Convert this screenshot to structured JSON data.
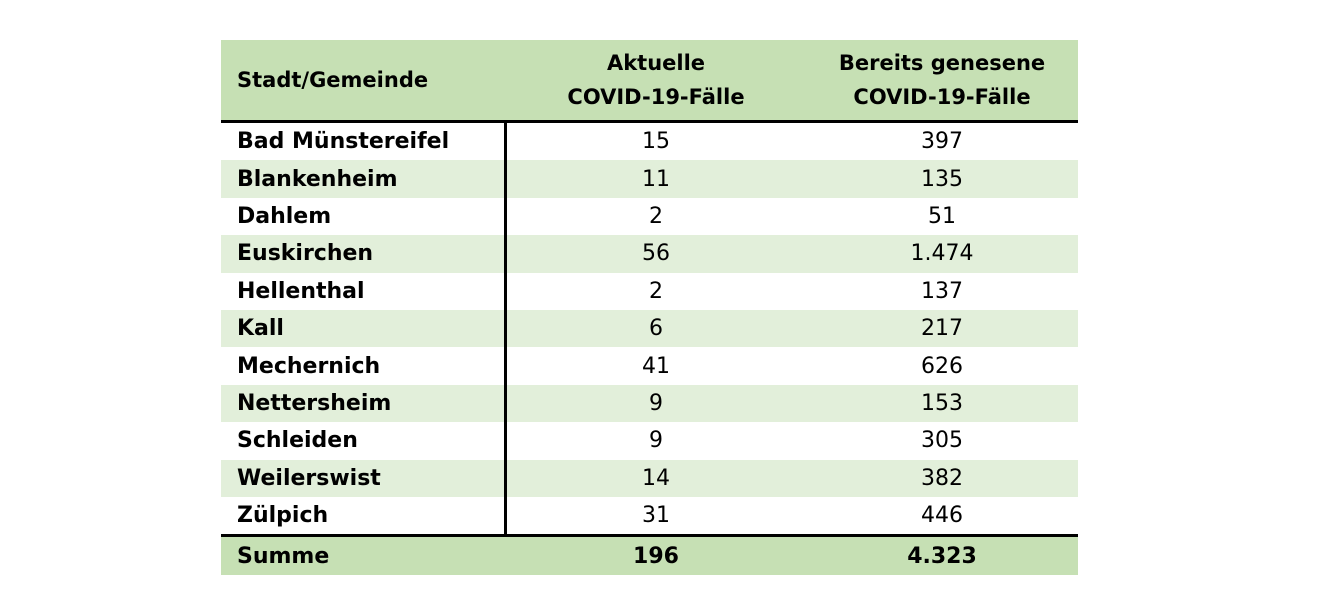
{
  "header": {
    "col1": "Stadt/Gemeinde",
    "col2_line1": "Aktuelle",
    "col2_line2": "COVID-19-Fälle",
    "col3_line1": "Bereits genesene",
    "col3_line2": "COVID-19-Fälle"
  },
  "rows": [
    {
      "name": "Bad Münstereifel",
      "current": "15",
      "recovered": "397"
    },
    {
      "name": "Blankenheim",
      "current": "11",
      "recovered": "135"
    },
    {
      "name": "Dahlem",
      "current": "2",
      "recovered": "51"
    },
    {
      "name": "Euskirchen",
      "current": "56",
      "recovered": "1.474"
    },
    {
      "name": "Hellenthal",
      "current": "2",
      "recovered": "137"
    },
    {
      "name": "Kall",
      "current": "6",
      "recovered": "217"
    },
    {
      "name": "Mechernich",
      "current": "41",
      "recovered": "626"
    },
    {
      "name": "Nettersheim",
      "current": "9",
      "recovered": "153"
    },
    {
      "name": "Schleiden",
      "current": "9",
      "recovered": "305"
    },
    {
      "name": "Weilerswist",
      "current": "14",
      "recovered": "382"
    },
    {
      "name": "Zülpich",
      "current": "31",
      "recovered": "446"
    }
  ],
  "summary": {
    "label": "Summe",
    "current": "196",
    "recovered": "4.323"
  },
  "colors": {
    "header_bg": "#c6e0b4",
    "alt_row_bg": "#e2efda"
  }
}
